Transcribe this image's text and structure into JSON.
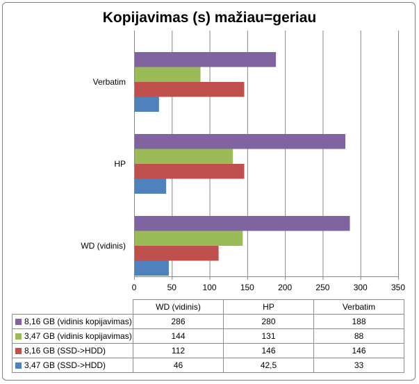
{
  "chart_data": {
    "type": "bar",
    "orientation": "horizontal",
    "title": "Kopijavimas (s) mažiau=geriau",
    "categories": [
      "WD (vidinis)",
      "HP",
      "Verbatim"
    ],
    "series": [
      {
        "name": "8,16 GB (vidinis kopijavimas)",
        "color": "#8064a2",
        "values": [
          286,
          280,
          188
        ],
        "labels": [
          "286",
          "280",
          "188"
        ]
      },
      {
        "name": "3,47 GB (vidinis kopijavimas)",
        "color": "#9bbb59",
        "values": [
          144,
          131,
          88
        ],
        "labels": [
          "144",
          "131",
          "88"
        ]
      },
      {
        "name": "8,16 GB (SSD->HDD)",
        "color": "#c0504d",
        "values": [
          112,
          146,
          146
        ],
        "labels": [
          "112",
          "146",
          "146"
        ]
      },
      {
        "name": "3,47 GB (SSD->HDD)",
        "color": "#4f81bd",
        "values": [
          46,
          42.5,
          33
        ],
        "labels": [
          "46",
          "42,5",
          "33"
        ]
      }
    ],
    "xlim": [
      0,
      350
    ],
    "xticks": [
      0,
      50,
      100,
      150,
      200,
      250,
      300,
      350
    ],
    "grid": true,
    "legend": "data-table"
  }
}
